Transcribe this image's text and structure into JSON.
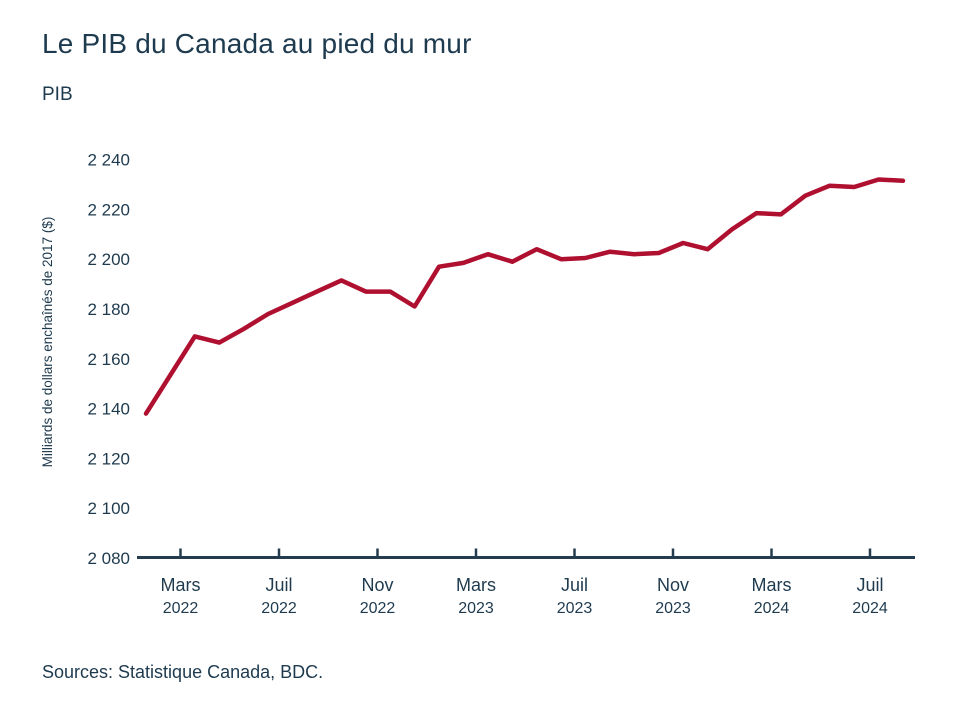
{
  "header": {
    "title": "Le PIB du Canada au pied du mur",
    "subtitle": "PIB"
  },
  "footer": {
    "sources": "Sources: Statistique Canada, BDC."
  },
  "colors": {
    "line": "#b01030",
    "text": "#1e3a4e",
    "axis": "#253c4e"
  },
  "chart_data": {
    "type": "line",
    "title": "Le PIB du Canada au pied du mur",
    "series_name": "PIB",
    "xlabel": "",
    "ylabel": "Milliards de dollars enchaînés de 2017 ($)",
    "ylim": [
      2080,
      2240
    ],
    "grid": false,
    "legend": "none",
    "line_color": "#b01030",
    "y_ticks": [
      {
        "label": "2 080",
        "value": 2080
      },
      {
        "label": "2 100",
        "value": 2100
      },
      {
        "label": "2 120",
        "value": 2120
      },
      {
        "label": "2 140",
        "value": 2140
      },
      {
        "label": "2 160",
        "value": 2160
      },
      {
        "label": "2 180",
        "value": 2180
      },
      {
        "label": "2 200",
        "value": 2200
      },
      {
        "label": "2 220",
        "value": 2220
      },
      {
        "label": "2 240",
        "value": 2240
      }
    ],
    "x_ticks": [
      {
        "month": "Mars",
        "year": "2022"
      },
      {
        "month": "Juil",
        "year": "2022"
      },
      {
        "month": "Nov",
        "year": "2022"
      },
      {
        "month": "Mars",
        "year": "2023"
      },
      {
        "month": "Juil",
        "year": "2023"
      },
      {
        "month": "Nov",
        "year": "2023"
      },
      {
        "month": "Mars",
        "year": "2024"
      },
      {
        "month": "Juil",
        "year": "2024"
      }
    ],
    "points": [
      {
        "x": "Janv 2022",
        "value": 2138
      },
      {
        "x": "Févr 2022",
        "value": 2153.5
      },
      {
        "x": "Mars 2022",
        "value": 2169
      },
      {
        "x": "Avr 2022",
        "value": 2166.5
      },
      {
        "x": "Mai 2022",
        "value": 2172
      },
      {
        "x": "Juin 2022",
        "value": 2178
      },
      {
        "x": "Juil 2022",
        "value": 2182.5
      },
      {
        "x": "Août 2022",
        "value": 2187
      },
      {
        "x": "Sept 2022",
        "value": 2191.5
      },
      {
        "x": "Oct 2022",
        "value": 2187
      },
      {
        "x": "Nov 2022",
        "value": 2187
      },
      {
        "x": "Déc 2022",
        "value": 2181
      },
      {
        "x": "Janv 2023",
        "value": 2197
      },
      {
        "x": "Févr 2023",
        "value": 2198.5
      },
      {
        "x": "Mars 2023",
        "value": 2202
      },
      {
        "x": "Avr 2023",
        "value": 2199
      },
      {
        "x": "Mai 2023",
        "value": 2204
      },
      {
        "x": "Juin 2023",
        "value": 2200
      },
      {
        "x": "Juil 2023",
        "value": 2200.5
      },
      {
        "x": "Août 2023",
        "value": 2203
      },
      {
        "x": "Sept 2023",
        "value": 2202
      },
      {
        "x": "Oct 2023",
        "value": 2202.5
      },
      {
        "x": "Nov 2023",
        "value": 2206.5
      },
      {
        "x": "Déc 2023",
        "value": 2204
      },
      {
        "x": "Janv 2024",
        "value": 2212
      },
      {
        "x": "Févr 2024",
        "value": 2218.5
      },
      {
        "x": "Mars 2024",
        "value": 2218
      },
      {
        "x": "Avr 2024",
        "value": 2225.5
      },
      {
        "x": "Mai 2024",
        "value": 2229.5
      },
      {
        "x": "Juin 2024",
        "value": 2229
      },
      {
        "x": "Juil 2024",
        "value": 2232
      },
      {
        "x": "Août 2024",
        "value": 2231.5
      }
    ]
  }
}
